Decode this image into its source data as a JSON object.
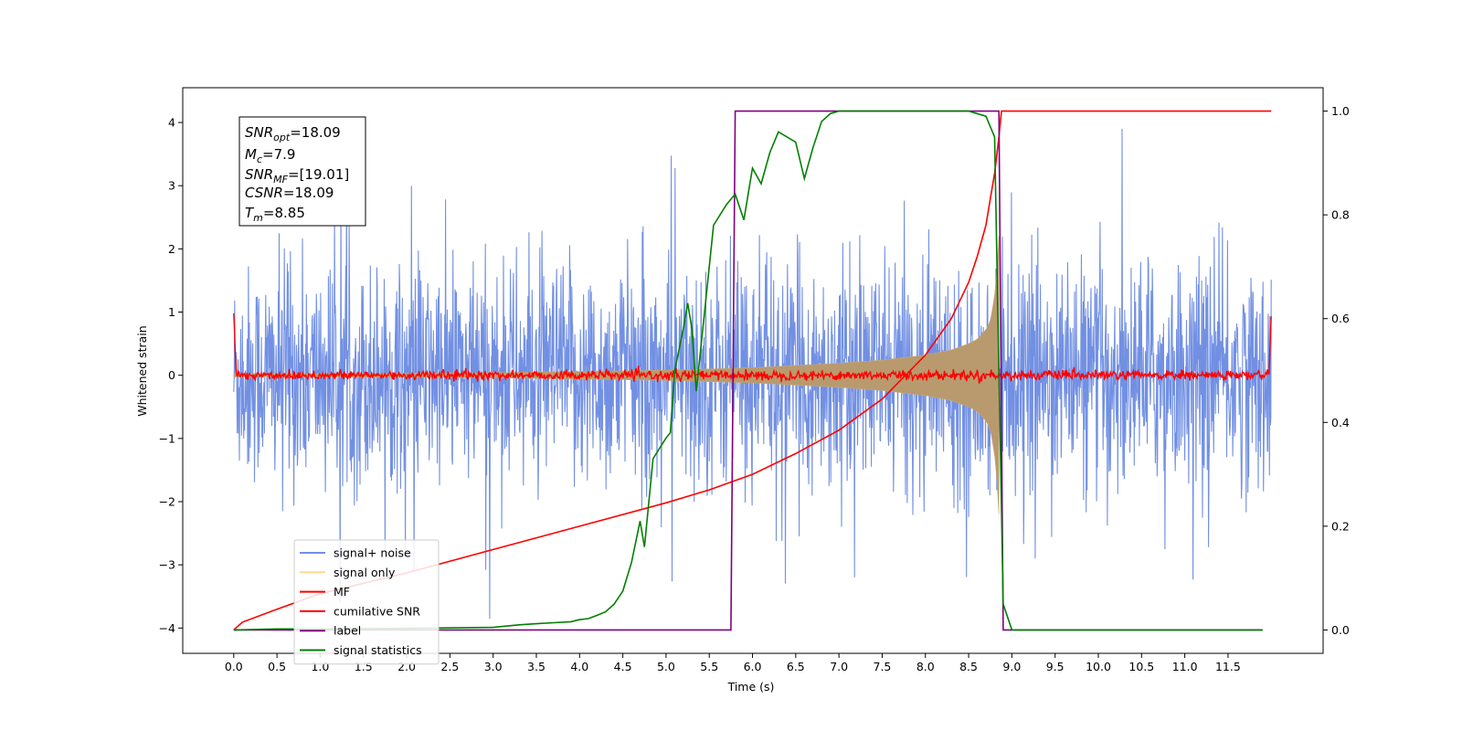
{
  "chart_data": {
    "type": "line",
    "xlabel": "Time (s)",
    "ylabel": "Whitened strain",
    "xlim": [
      -0.59,
      12.6
    ],
    "ylim": [
      -4.4,
      4.55
    ],
    "y2lim": [
      -0.045,
      1.045
    ],
    "x_ticks": [
      "0.0",
      "0.5",
      "1.0",
      "1.5",
      "2.0",
      "2.5",
      "3.0",
      "3.5",
      "4.0",
      "4.5",
      "5.0",
      "5.5",
      "6.0",
      "6.5",
      "7.0",
      "7.5",
      "8.0",
      "8.5",
      "9.0",
      "9.5",
      "10.0",
      "10.5",
      "11.0",
      "11.5"
    ],
    "y_ticks": [
      "4",
      "3",
      "2",
      "1",
      "0",
      "−1",
      "−2",
      "−3",
      "−4"
    ],
    "y2_ticks": [
      "1.0",
      "0.8",
      "0.6",
      "0.4",
      "0.2",
      "0.0"
    ],
    "info_box": {
      "snr_opt": {
        "name": "SNR",
        "sub": "opt",
        "value": "=18.09"
      },
      "mc": {
        "name": "M",
        "sub": "c",
        "value": "=7.9"
      },
      "snr_mf": {
        "name": "SNR",
        "sub": "MF",
        "value": "=[19.01]"
      },
      "csnr": {
        "name": "CSNR",
        "value": "=18.09"
      },
      "tm": {
        "name": "T",
        "sub": "m",
        "value": "=8.85"
      }
    },
    "legend": {
      "placement": "lower-left",
      "items": [
        {
          "label": "signal+ noise",
          "color": "#7290e3"
        },
        {
          "label": "signal only",
          "color": "#ffd98c"
        },
        {
          "label": "MF",
          "color": "#ff0000"
        },
        {
          "label": "cumilative SNR",
          "color": "#ff0000"
        },
        {
          "label": "label",
          "color": "#800080"
        },
        {
          "label": "signal statistics",
          "color": "#008000"
        }
      ]
    },
    "series": [
      {
        "name": "signal+ noise",
        "axis": "left",
        "color": "#7290e3",
        "kind": "noise",
        "x_range": [
          0.0,
          12.0
        ],
        "amplitude_typical": 1.6,
        "amplitude_max": 3.9,
        "description_points": {
          "x": [
            0.0,
            12.0
          ],
          "y": [
            0,
            0
          ]
        }
      },
      {
        "name": "signal only",
        "axis": "left",
        "color": "#ffd98c",
        "kind": "chirp_envelope",
        "x": [
          0.0,
          3.0,
          5.0,
          6.0,
          7.0,
          7.5,
          8.0,
          8.3,
          8.5,
          8.6,
          8.7,
          8.75,
          8.8,
          8.83,
          8.85
        ],
        "envelope": [
          0.02,
          0.04,
          0.08,
          0.12,
          0.19,
          0.24,
          0.32,
          0.4,
          0.5,
          0.57,
          0.72,
          0.85,
          1.25,
          1.7,
          2.2
        ]
      },
      {
        "name": "MF",
        "axis": "left",
        "color": "#ff0000",
        "kind": "noise_small",
        "x": [
          0.0,
          0.03,
          11.97,
          12.0
        ],
        "y": [
          1.0,
          0.0,
          0.0,
          0.92
        ],
        "amplitude": 0.07
      },
      {
        "name": "cumilative SNR",
        "axis": "right",
        "color": "#ff0000",
        "x": [
          0.0,
          0.1,
          0.5,
          1.0,
          2.0,
          3.0,
          4.0,
          5.0,
          5.5,
          6.0,
          6.5,
          7.0,
          7.5,
          8.0,
          8.3,
          8.5,
          8.6,
          8.7,
          8.75,
          8.8,
          8.85,
          8.88,
          12.0
        ],
        "y": [
          0.0,
          0.015,
          0.04,
          0.07,
          0.11,
          0.155,
          0.2,
          0.245,
          0.27,
          0.3,
          0.34,
          0.385,
          0.445,
          0.53,
          0.6,
          0.67,
          0.72,
          0.78,
          0.83,
          0.88,
          0.95,
          1.0,
          1.0
        ]
      },
      {
        "name": "label",
        "axis": "right",
        "color": "#800080",
        "x": [
          0.0,
          5.75,
          5.8,
          8.85,
          8.9,
          11.9
        ],
        "y": [
          0.0,
          0.0,
          1.0,
          1.0,
          0.0,
          0.0
        ]
      },
      {
        "name": "signal statistics",
        "axis": "right",
        "color": "#008000",
        "x": [
          0.0,
          0.5,
          1.0,
          2.0,
          3.0,
          3.3,
          3.5,
          3.7,
          3.9,
          4.0,
          4.1,
          4.2,
          4.3,
          4.4,
          4.5,
          4.6,
          4.7,
          4.75,
          4.85,
          5.0,
          5.05,
          5.1,
          5.2,
          5.25,
          5.3,
          5.35,
          5.45,
          5.55,
          5.7,
          5.8,
          5.9,
          6.0,
          6.1,
          6.2,
          6.3,
          6.5,
          6.6,
          6.7,
          6.8,
          6.9,
          7.0,
          7.5,
          8.0,
          8.5,
          8.7,
          8.8,
          8.85,
          8.9,
          9.0,
          11.9
        ],
        "y": [
          0.0,
          0.002,
          0.002,
          0.003,
          0.005,
          0.01,
          0.012,
          0.014,
          0.016,
          0.02,
          0.022,
          0.028,
          0.035,
          0.05,
          0.075,
          0.13,
          0.21,
          0.16,
          0.33,
          0.37,
          0.38,
          0.5,
          0.58,
          0.63,
          0.58,
          0.46,
          0.62,
          0.78,
          0.82,
          0.84,
          0.79,
          0.89,
          0.86,
          0.92,
          0.96,
          0.94,
          0.87,
          0.93,
          0.98,
          0.995,
          1.0,
          1.0,
          1.0,
          1.0,
          0.99,
          0.95,
          0.5,
          0.05,
          0.0,
          0.0
        ]
      }
    ]
  }
}
